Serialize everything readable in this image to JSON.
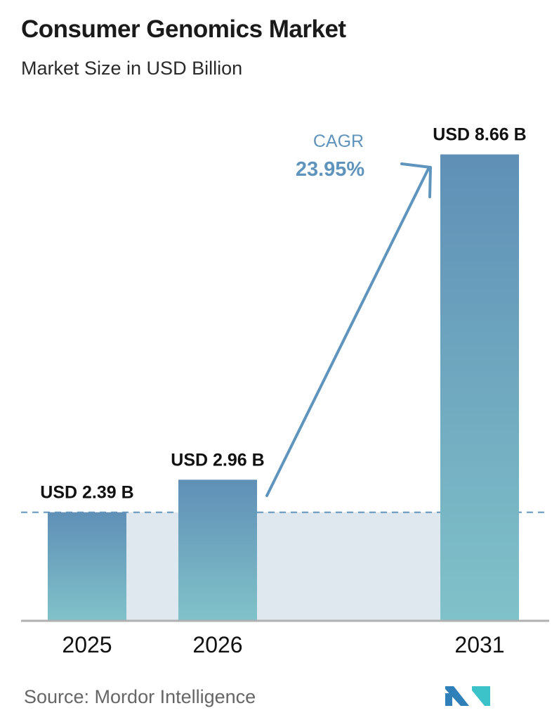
{
  "title": "Consumer Genomics Market",
  "subtitle": "Market Size in USD Billion",
  "source": "Source:  Mordor Intelligence",
  "logo_text": "MI",
  "colors": {
    "bar_top": "#5f8fb6",
    "bar_bottom": "#80c2c9",
    "band": "#dfe8ef",
    "arrow": "#5f94bd",
    "axis": "#b0b0b0"
  },
  "chart_data": {
    "type": "bar",
    "categories": [
      "2025",
      "2026",
      "2031"
    ],
    "values": [
      2.39,
      2.96,
      8.66
    ],
    "data_labels": [
      "USD 2.39 B",
      "USD 2.96 B",
      "USD 8.66 B"
    ],
    "title": "Consumer Genomics Market",
    "subtitle": "Market Size in USD Billion",
    "xlabel": "",
    "ylabel": "",
    "ylim": [
      0.5,
      9.0
    ],
    "grid": false,
    "annotation": {
      "label": "CAGR",
      "value": "23.95%"
    }
  }
}
